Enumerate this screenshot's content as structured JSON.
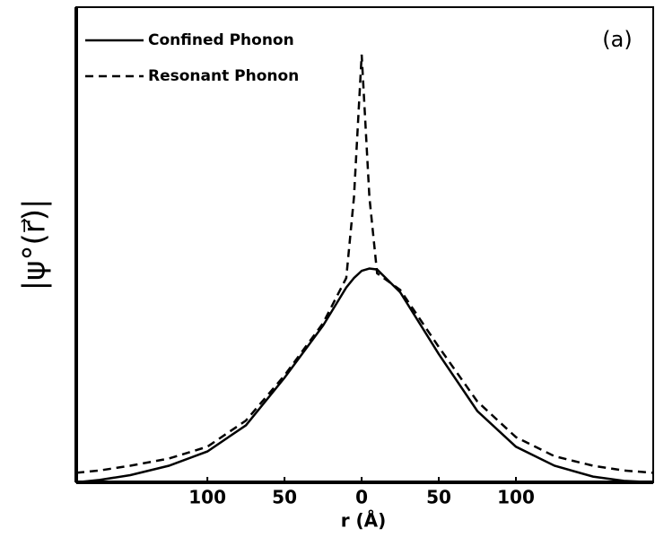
{
  "chart_data": {
    "type": "line",
    "x_label": "r (Å)",
    "y_label": "|ψ°(r⃗)|",
    "annotation": "(a)",
    "x": [
      -185,
      -170,
      -150,
      -125,
      -100,
      -75,
      -50,
      -25,
      -10,
      -5,
      0,
      5,
      10,
      25,
      50,
      75,
      100,
      125,
      150,
      170,
      189
    ],
    "series": [
      {
        "name": "Confined Phonon",
        "color": "#000000",
        "dash": "solid",
        "values": [
          0.0,
          0.005,
          0.015,
          0.035,
          0.065,
          0.12,
          0.22,
          0.33,
          0.41,
          0.43,
          0.445,
          0.45,
          0.448,
          0.4,
          0.27,
          0.15,
          0.075,
          0.035,
          0.012,
          0.003,
          0.0
        ]
      },
      {
        "name": "Resonant Phonon",
        "color": "#000000",
        "dash": "dashed",
        "values": [
          0.02,
          0.025,
          0.035,
          0.05,
          0.075,
          0.13,
          0.225,
          0.335,
          0.43,
          0.6,
          0.9,
          0.6,
          0.44,
          0.405,
          0.285,
          0.17,
          0.095,
          0.055,
          0.035,
          0.025,
          0.02
        ]
      }
    ],
    "xlim": [
      -185,
      189
    ],
    "ylim": [
      0,
      1
    ],
    "xticks": [
      {
        "value": -100,
        "label": "100"
      },
      {
        "value": -50,
        "label": "50"
      },
      0,
      {
        "value": 50,
        "label": "50"
      },
      {
        "value": 100,
        "label": "100"
      }
    ],
    "legend": "upper left"
  }
}
